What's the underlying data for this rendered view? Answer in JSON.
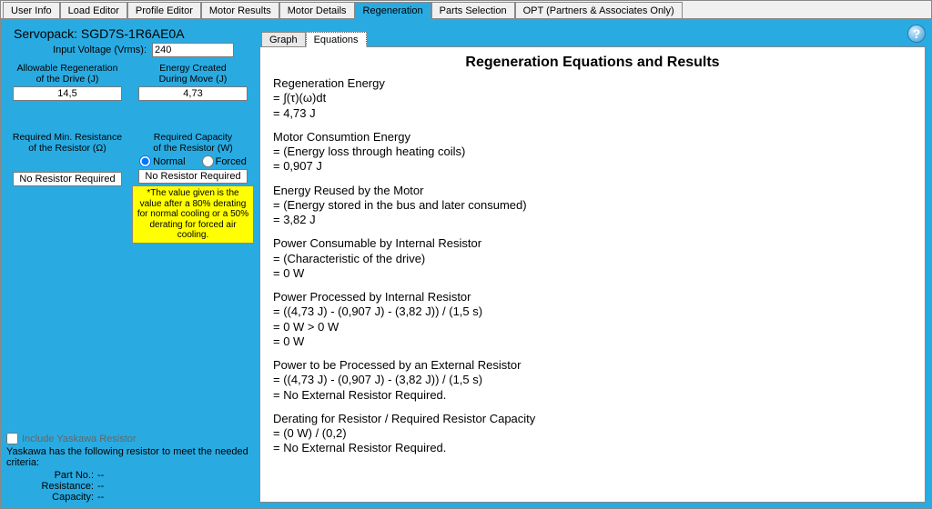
{
  "tabs": [
    "User Info",
    "Load Editor",
    "Profile Editor",
    "Motor Results",
    "Motor Details",
    "Regeneration",
    "Parts Selection",
    "OPT (Partners & Associates Only)"
  ],
  "active_tab_index": 5,
  "subtabs": [
    "Graph",
    "Equations"
  ],
  "active_subtab_index": 1,
  "servopack_label": "Servopack: SGD7S-1R6AE0A",
  "input_voltage": {
    "label": "Input Voltage (Vrms):",
    "value": "240"
  },
  "allow_regen": {
    "label1": "Allowable Regeneration",
    "label2": "of the Drive (J)",
    "value": "14,5"
  },
  "energy_created": {
    "label1": "Energy Created",
    "label2": "During Move (J)",
    "value": "4,73"
  },
  "min_resistance": {
    "label1": "Required Min. Resistance",
    "label2": "of the Resistor (Ω)",
    "value": "No Resistor Required"
  },
  "req_capacity": {
    "label1": "Required Capacity",
    "label2": "of the Resistor (W)",
    "radio_normal": "Normal",
    "radio_forced": "Forced",
    "selected": "normal",
    "value": "No Resistor Required"
  },
  "derating_note": "*The value given is the value after a 80% derating for normal cooling or a 50% derating for forced air cooling.",
  "include_cb": "Include Yaskawa Resistor",
  "criteria_line": "Yaskawa has the following resistor to meet the needed criteria:",
  "part_no": {
    "k": "Part No.:",
    "v": "--"
  },
  "resistance": {
    "k": "Resistance:",
    "v": "--"
  },
  "capacity": {
    "k": "Capacity:",
    "v": "--"
  },
  "results_title": "Regeneration Equations and Results",
  "eq": [
    {
      "t": "Regeneration Energy",
      "l1": " = ∫(τ)(ω)dt",
      "l2": " = 4,73 J"
    },
    {
      "t": "Motor Consumtion Energy",
      "l1": " = (Energy loss through heating coils)",
      "l2": " = 0,907 J"
    },
    {
      "t": "Energy Reused by the Motor",
      "l1": " = (Energy stored in the bus and later consumed)",
      "l2": " = 3,82 J"
    },
    {
      "t": "Power Consumable by Internal Resistor",
      "l1": " = (Characteristic of the drive)",
      "l2": " = 0 W"
    },
    {
      "t": "Power Processed by Internal Resistor",
      "l1": " = ((4,73 J) - (0,907 J) - (3,82 J)) / (1,5 s)",
      "l2": " = 0 W > 0 W",
      "l3": " = 0 W"
    },
    {
      "t": "Power to be Processed by an External Resistor",
      "l1": " = ((4,73 J) - (0,907 J) - (3,82 J)) / (1,5 s)",
      "l2": " = No External Resistor Required."
    },
    {
      "t": "Derating for Resistor / Required Resistor Capacity",
      "l1": " = (0 W) / (0,2)",
      "l2": " = No External Resistor Required."
    }
  ]
}
